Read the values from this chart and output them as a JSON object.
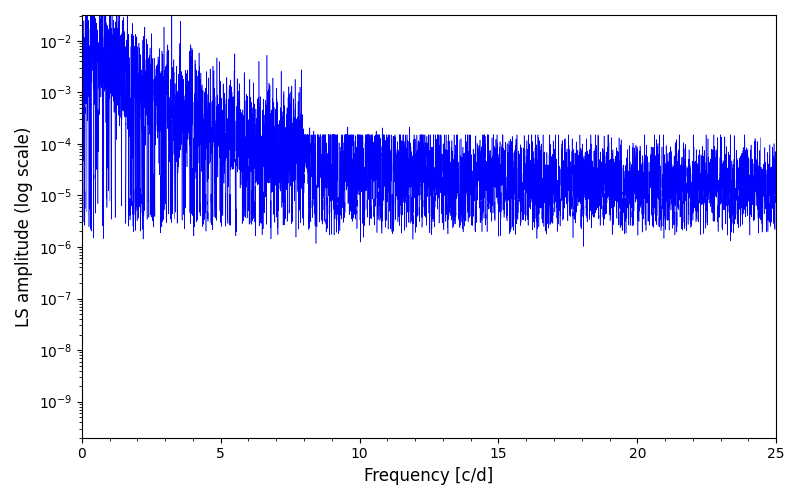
{
  "xlabel": "Frequency [c/d]",
  "ylabel": "LS amplitude (log scale)",
  "line_color": "#0000ff",
  "xlim": [
    0,
    25
  ],
  "ylim_log_min": -9.7,
  "ylim_log_max": -1.5,
  "background_color": "#ffffff",
  "figsize": [
    8.0,
    5.0
  ],
  "dpi": 100,
  "seed": 42,
  "n_points": 10000,
  "freq_max": 25.0,
  "peak_amplitude": 0.015,
  "floor_amplitude": 1.5e-05,
  "noise_floor": 5e-06,
  "xlabel_fontsize": 12,
  "ylabel_fontsize": 12
}
